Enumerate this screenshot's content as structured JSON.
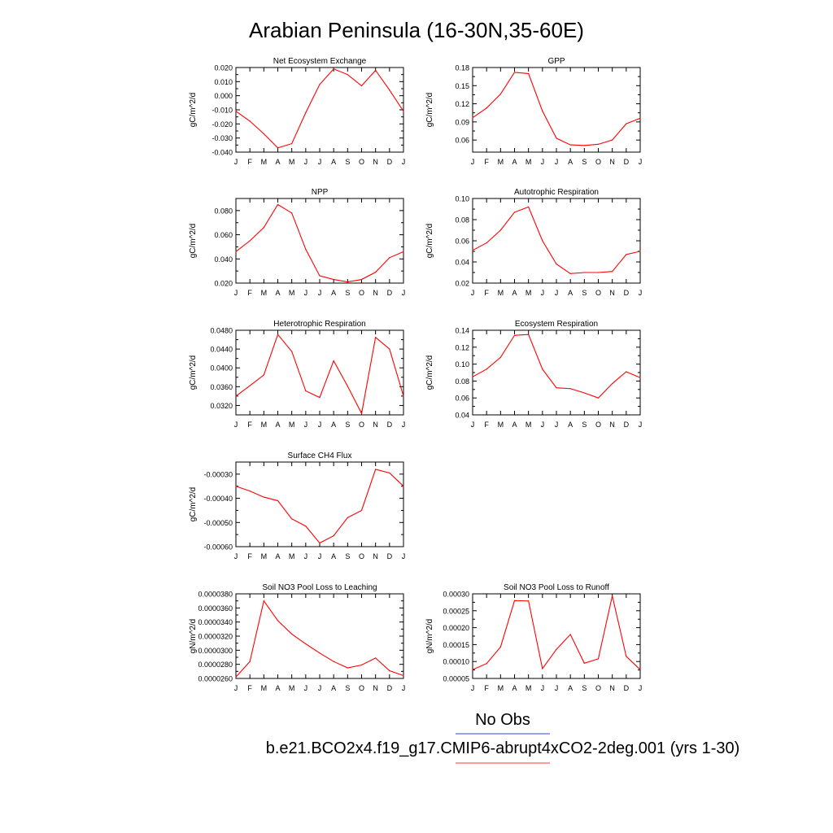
{
  "figure_title": "Arabian Peninsula (16-30N,35-60E)",
  "legend": {
    "entries": [
      {
        "label": "No Obs",
        "color": "#5b67ff"
      },
      {
        "label": "b.e21.BCO2x4.f19_g17.CMIP6-abrupt4xCO2-2deg.001 (yrs 1-30)",
        "color": "#ff6060"
      }
    ]
  },
  "colors": {
    "series": "#ff0000",
    "axis": "#000000",
    "background": "#ffffff"
  },
  "chart_data": [
    {
      "type": "line",
      "title": "Net Ecosystem Exchange",
      "ylabel": "gC/m^2/d",
      "xlabel": "",
      "categories": [
        "J",
        "F",
        "M",
        "A",
        "M",
        "J",
        "J",
        "A",
        "S",
        "O",
        "N",
        "D",
        "J"
      ],
      "ylim": [
        -0.04,
        0.02
      ],
      "yticks": [
        "0.020",
        "0.010",
        "0.000",
        "-0.010",
        "-0.020",
        "-0.030",
        "-0.040"
      ],
      "series": [
        {
          "values": [
            -0.011,
            -0.018,
            -0.027,
            -0.037,
            -0.034,
            -0.012,
            0.008,
            0.019,
            0.015,
            0.007,
            0.018,
            0.004,
            -0.011
          ]
        }
      ]
    },
    {
      "type": "line",
      "title": "GPP",
      "ylabel": "gC/m^2/d",
      "xlabel": "",
      "categories": [
        "J",
        "F",
        "M",
        "A",
        "M",
        "J",
        "J",
        "A",
        "S",
        "O",
        "N",
        "D",
        "J"
      ],
      "ylim": [
        0.04,
        0.18
      ],
      "yticks": [
        "0.18",
        "0.15",
        "0.12",
        "0.09",
        "0.06"
      ],
      "series": [
        {
          "values": [
            0.097,
            0.113,
            0.136,
            0.172,
            0.17,
            0.108,
            0.063,
            0.052,
            0.051,
            0.053,
            0.06,
            0.087,
            0.096
          ]
        }
      ]
    },
    {
      "type": "line",
      "title": "NPP",
      "ylabel": "gC/m^2/d",
      "xlabel": "",
      "categories": [
        "J",
        "F",
        "M",
        "A",
        "M",
        "J",
        "J",
        "A",
        "S",
        "O",
        "N",
        "D",
        "J"
      ],
      "ylim": [
        0.02,
        0.09
      ],
      "yticks": [
        "0.080",
        "0.060",
        "0.040",
        "0.020"
      ],
      "series": [
        {
          "values": [
            0.046,
            0.055,
            0.066,
            0.085,
            0.078,
            0.048,
            0.026,
            0.023,
            0.021,
            0.023,
            0.029,
            0.041,
            0.046
          ]
        }
      ]
    },
    {
      "type": "line",
      "title": "Autotrophic Respiration",
      "ylabel": "gC/m^2/d",
      "xlabel": "",
      "categories": [
        "J",
        "F",
        "M",
        "A",
        "M",
        "J",
        "J",
        "A",
        "S",
        "O",
        "N",
        "D",
        "J"
      ],
      "ylim": [
        0.02,
        0.1
      ],
      "yticks": [
        "0.10",
        "0.08",
        "0.06",
        "0.04",
        "0.02"
      ],
      "series": [
        {
          "values": [
            0.051,
            0.058,
            0.07,
            0.087,
            0.092,
            0.06,
            0.038,
            0.029,
            0.03,
            0.03,
            0.031,
            0.047,
            0.05
          ]
        }
      ]
    },
    {
      "type": "line",
      "title": "Heterotrophic Respiration",
      "ylabel": "gC/m^2/d",
      "xlabel": "",
      "categories": [
        "J",
        "F",
        "M",
        "A",
        "M",
        "J",
        "J",
        "A",
        "S",
        "O",
        "N",
        "D",
        "J"
      ],
      "ylim": [
        0.03,
        0.048
      ],
      "yticks": [
        "0.0480",
        "0.0440",
        "0.0400",
        "0.0360",
        "0.0320"
      ],
      "series": [
        {
          "values": [
            0.034,
            0.0362,
            0.0385,
            0.0471,
            0.0435,
            0.0351,
            0.0337,
            0.0415,
            0.0361,
            0.0303,
            0.0465,
            0.044,
            0.034
          ]
        }
      ]
    },
    {
      "type": "line",
      "title": "Ecosystem Respiration",
      "ylabel": "gC/m^2/d",
      "xlabel": "",
      "categories": [
        "J",
        "F",
        "M",
        "A",
        "M",
        "J",
        "J",
        "A",
        "S",
        "O",
        "N",
        "D",
        "J"
      ],
      "ylim": [
        0.04,
        0.14
      ],
      "yticks": [
        "0.14",
        "0.12",
        "0.10",
        "0.08",
        "0.06",
        "0.04"
      ],
      "series": [
        {
          "values": [
            0.085,
            0.094,
            0.108,
            0.134,
            0.135,
            0.094,
            0.072,
            0.071,
            0.066,
            0.06,
            0.077,
            0.091,
            0.084
          ]
        }
      ]
    },
    {
      "type": "line",
      "title": "Surface CH4 Flux",
      "ylabel": "gC/m^2/d",
      "xlabel": "",
      "categories": [
        "J",
        "F",
        "M",
        "A",
        "M",
        "J",
        "J",
        "A",
        "S",
        "O",
        "N",
        "D",
        "J"
      ],
      "ylim": [
        -0.0006,
        -0.00025
      ],
      "yticks": [
        "-0.00030",
        "-0.00040",
        "-0.00050",
        "-0.00060"
      ],
      "series": [
        {
          "values": [
            -0.00035,
            -0.00037,
            -0.000395,
            -0.00041,
            -0.000485,
            -0.000515,
            -0.000585,
            -0.000555,
            -0.00048,
            -0.00045,
            -0.00028,
            -0.000295,
            -0.00035
          ]
        }
      ]
    },
    {
      "type": "line",
      "title": "Soil NO3 Pool Loss to Leaching",
      "ylabel": "gN/m^2/d",
      "xlabel": "",
      "categories": [
        "J",
        "F",
        "M",
        "A",
        "M",
        "J",
        "J",
        "A",
        "S",
        "O",
        "N",
        "D",
        "J"
      ],
      "ylim": [
        2.6e-05,
        3.8e-05
      ],
      "yticks": [
        "0.0000380",
        "0.0000360",
        "0.0000340",
        "0.0000320",
        "0.0000300",
        "0.0000280",
        "0.0000260"
      ],
      "series": [
        {
          "values": [
            2.62e-05,
            2.84e-05,
            3.7e-05,
            3.42e-05,
            3.23e-05,
            3.09e-05,
            2.96e-05,
            2.84e-05,
            2.75e-05,
            2.79e-05,
            2.89e-05,
            2.71e-05,
            2.64e-05
          ]
        }
      ]
    },
    {
      "type": "line",
      "title": "Soil NO3 Pool Loss to Runoff",
      "ylabel": "gN/m^2/d",
      "xlabel": "",
      "categories": [
        "J",
        "F",
        "M",
        "A",
        "M",
        "J",
        "J",
        "A",
        "S",
        "O",
        "N",
        "D",
        "J"
      ],
      "ylim": [
        5e-05,
        0.0003
      ],
      "yticks": [
        "0.00030",
        "0.00025",
        "0.00020",
        "0.00015",
        "0.00010",
        "0.00005"
      ],
      "series": [
        {
          "values": [
            7.6e-05,
            9.4e-05,
            0.000143,
            0.00028,
            0.000279,
            7.9e-05,
            0.000136,
            0.00018,
            9.5e-05,
            0.000108,
            0.000294,
            0.000115,
            7.6e-05
          ]
        }
      ]
    }
  ]
}
